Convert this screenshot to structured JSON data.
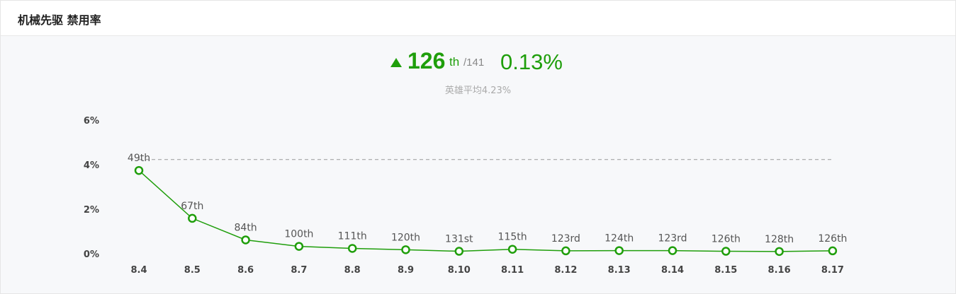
{
  "header": {
    "title": "机械先驱 禁用率"
  },
  "summary": {
    "rank": "126",
    "rank_suffix": "th",
    "rank_total": "/141",
    "rate": "0.13%",
    "average_text": "英雄平均4.23%"
  },
  "colors": {
    "accent": "#1f9e0b",
    "reference_line": "#999999"
  },
  "icons": {
    "trend": "up-triangle-icon"
  },
  "chart_data": {
    "type": "line",
    "x": [
      "8.4",
      "8.5",
      "8.6",
      "8.7",
      "8.8",
      "8.9",
      "8.10",
      "8.11",
      "8.12",
      "8.13",
      "8.14",
      "8.15",
      "8.16",
      "8.17"
    ],
    "values": [
      3.74,
      1.59,
      0.62,
      0.33,
      0.24,
      0.18,
      0.11,
      0.2,
      0.13,
      0.14,
      0.14,
      0.11,
      0.1,
      0.13
    ],
    "point_labels": [
      "49th",
      "67th",
      "84th",
      "100th",
      "111th",
      "120th",
      "131st",
      "115th",
      "123rd",
      "124th",
      "123rd",
      "126th",
      "128th",
      "126th"
    ],
    "yticks": [
      "0%",
      "2%",
      "4%",
      "6%"
    ],
    "ylim": [
      0,
      6
    ],
    "reference_line": 4.23,
    "grid": false,
    "legend": "none"
  }
}
